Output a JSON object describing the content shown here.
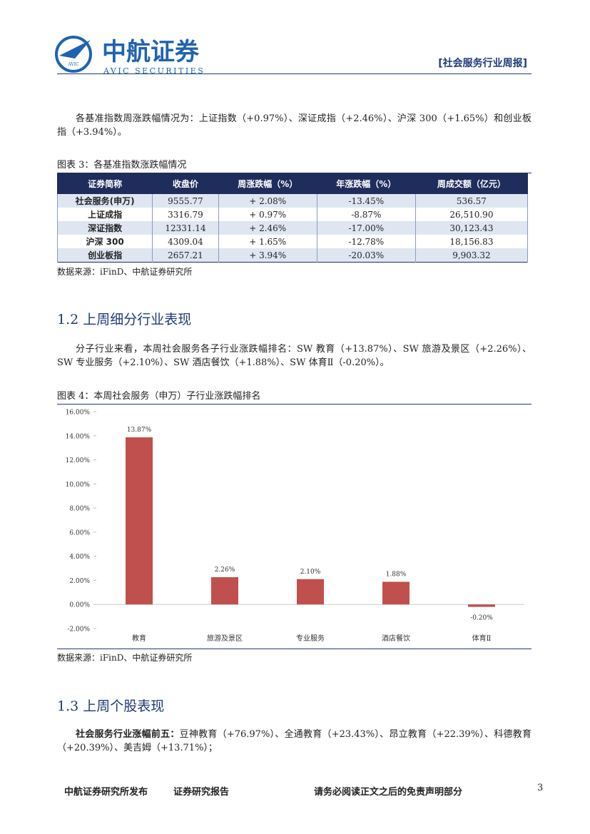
{
  "header": {
    "logo_cn": "中航证券",
    "logo_en": "AVIC SECURITIES",
    "logo_badge": "AVIC",
    "report_type": "[社会服务行业周报]"
  },
  "paragraph1": "各基准指数周涨跌幅情况为：上证指数（+0.97%）、深证成指（+2.46%）、沪深 300（+1.65%）和创业板指（+3.94%）。",
  "figure3": {
    "caption": "图表 3：各基准指数涨跌幅情况",
    "table": {
      "header": [
        "证券简称",
        "收盘价",
        "周涨跌幅（%）",
        "年涨跌幅（%）",
        "周成交额（亿元）"
      ],
      "rows": [
        [
          "社会服务(申万)",
          "9555.77",
          "+ 2.08%",
          "-13.45%",
          "536.57"
        ],
        [
          "上证成指",
          "3316.79",
          "+ 0.97%",
          "-8.87%",
          "26,510.90"
        ],
        [
          "深证指数",
          "12331.14",
          "+ 2.46%",
          "-17.00%",
          "30,123.43"
        ],
        [
          "沪深 300",
          "4309.04",
          "+ 1.65%",
          "-12.78%",
          "18,156.83"
        ],
        [
          "创业板指",
          "2657.21",
          "+ 3.94%",
          "-20.03%",
          "9,903.32"
        ]
      ]
    },
    "source": "数据来源：iFinD、中航证券研究所"
  },
  "heading2": "1.2 上周细分行业表现",
  "paragraph2": "分子行业来看，本周社会服务各子行业涨跌幅排名：SW 教育（+13.87%）、SW 旅游及景区（+2.26%）、SW 专业服务（+2.10%）、SW 酒店餐饮（+1.88%）、SW 体育Ⅱ（-0.20%）。",
  "chart_data": {
    "type": "bar",
    "title": "图表 4：本周社会服务（申万）子行业涨跌幅排名",
    "categories": [
      "教育",
      "旅游及景区",
      "专业服务",
      "酒店餐饮",
      "体育Ⅱ"
    ],
    "values": [
      13.87,
      2.26,
      2.1,
      1.88,
      -0.2
    ],
    "value_labels": [
      "13.87%",
      "2.26%",
      "2.10%",
      "1.88%",
      "-0.20%"
    ],
    "color": "#c0504d",
    "ylim": [
      -2,
      16
    ],
    "yticks": [
      {
        "value": -2,
        "label": "-2.00%"
      },
      {
        "value": 0,
        "label": "0.00%"
      },
      {
        "value": 2,
        "label": "2.00%"
      },
      {
        "value": 4,
        "label": "4.00%"
      },
      {
        "value": 6,
        "label": "6.00%"
      },
      {
        "value": 8,
        "label": "8.00%"
      },
      {
        "value": 10,
        "label": "10.00%"
      },
      {
        "value": 12,
        "label": "12.00%"
      },
      {
        "value": 14,
        "label": "14.00%"
      },
      {
        "value": 16,
        "label": "16.00%"
      }
    ],
    "grid": false
  },
  "figure4_source": "数据来源：iFinD、中航证券研究所",
  "heading3": "1.3 上周个股表现",
  "paragraph3": {
    "lead": "社会服务行业涨幅前五：",
    "text": "豆神教育（+76.97%）、全通教育（+23.43%）、昂立教育（+22.39%）、科德教育（+20.39%）、美吉姆（+13.71%）；"
  },
  "footer": {
    "publisher": "中航证券研究所发布",
    "doc_type": "证券研究报告",
    "disclaimer": "请务必阅读正文之后的免责声明部分",
    "page": "3"
  }
}
